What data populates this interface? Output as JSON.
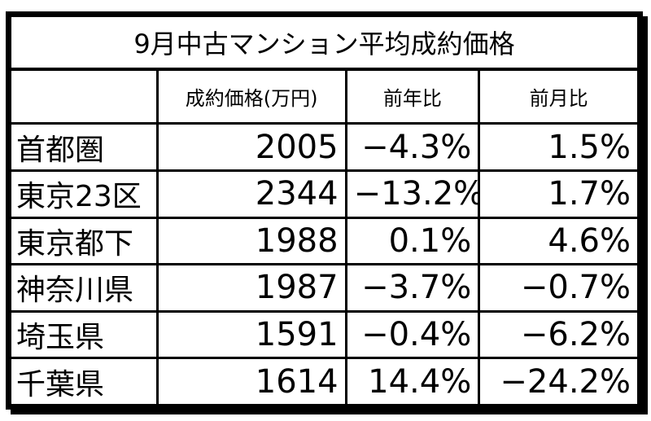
{
  "chart_data": {
    "type": "table",
    "title": "9月中古マンション平均成約価格",
    "columns": [
      "",
      "成約価格(万円)",
      "前年比",
      "前月比"
    ],
    "rows": [
      {
        "region": "首都圏",
        "price": "2005",
        "yoy": "−4.3%",
        "mom": "1.5%"
      },
      {
        "region": "東京23区",
        "price": "2344",
        "yoy": "−13.2%",
        "mom": "1.7%"
      },
      {
        "region": "東京都下",
        "price": "1988",
        "yoy": "0.1%",
        "mom": "4.6%"
      },
      {
        "region": "神奈川県",
        "price": "1987",
        "yoy": "−3.7%",
        "mom": "−0.7%"
      },
      {
        "region": "埼玉県",
        "price": "1591",
        "yoy": "−0.4%",
        "mom": "−6.2%"
      },
      {
        "region": "千葉県",
        "price": "1614",
        "yoy": "14.4%",
        "mom": "−24.2%"
      }
    ]
  }
}
